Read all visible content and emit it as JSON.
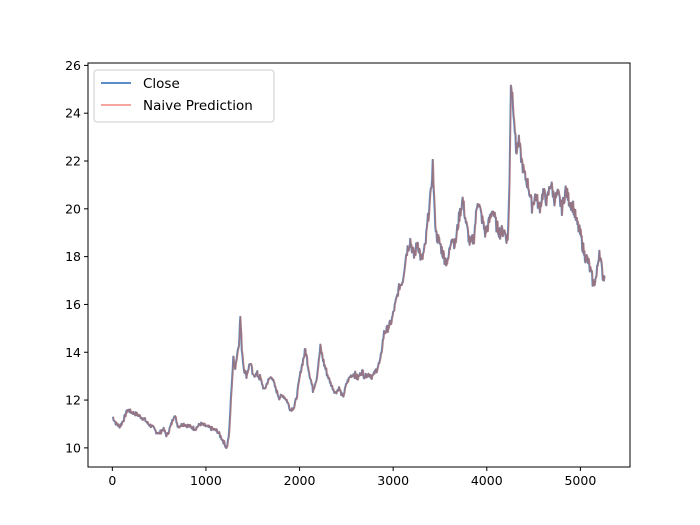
{
  "chart_data": {
    "type": "line",
    "title": "",
    "xlabel": "",
    "ylabel": "",
    "xlim": [
      -260,
      5530
    ],
    "ylim": [
      9.2,
      26.1
    ],
    "x_ticks": [
      0,
      1000,
      2000,
      3000,
      4000,
      5000
    ],
    "y_ticks": [
      10,
      12,
      14,
      16,
      18,
      20,
      22,
      24,
      26
    ],
    "grid": false,
    "legend": {
      "placement": "top-left"
    },
    "series": [
      {
        "name": "Close",
        "color": "#5b8ec6",
        "opacity": 1.0,
        "points": [
          [
            0,
            11.3
          ],
          [
            40,
            11.0
          ],
          [
            80,
            10.9
          ],
          [
            120,
            11.2
          ],
          [
            160,
            11.6
          ],
          [
            200,
            11.5
          ],
          [
            260,
            11.4
          ],
          [
            300,
            11.3
          ],
          [
            340,
            11.2
          ],
          [
            380,
            11.0
          ],
          [
            420,
            10.9
          ],
          [
            460,
            10.7
          ],
          [
            500,
            10.6
          ],
          [
            540,
            10.8
          ],
          [
            580,
            10.5
          ],
          [
            620,
            10.9
          ],
          [
            660,
            11.4
          ],
          [
            700,
            10.9
          ],
          [
            760,
            11.0
          ],
          [
            820,
            10.9
          ],
          [
            880,
            10.8
          ],
          [
            940,
            11.0
          ],
          [
            1000,
            10.9
          ],
          [
            1060,
            10.8
          ],
          [
            1120,
            10.7
          ],
          [
            1180,
            10.3
          ],
          [
            1220,
            10.0
          ],
          [
            1245,
            10.6
          ],
          [
            1270,
            12.5
          ],
          [
            1290,
            13.7
          ],
          [
            1310,
            13.4
          ],
          [
            1330,
            13.9
          ],
          [
            1350,
            14.4
          ],
          [
            1365,
            15.5
          ],
          [
            1380,
            14.2
          ],
          [
            1400,
            13.4
          ],
          [
            1430,
            13.0
          ],
          [
            1470,
            13.6
          ],
          [
            1500,
            13.0
          ],
          [
            1540,
            13.1
          ],
          [
            1580,
            12.9
          ],
          [
            1620,
            12.4
          ],
          [
            1660,
            12.8
          ],
          [
            1700,
            13.0
          ],
          [
            1740,
            12.5
          ],
          [
            1780,
            12.1
          ],
          [
            1820,
            12.2
          ],
          [
            1860,
            12.0
          ],
          [
            1900,
            11.6
          ],
          [
            1940,
            11.7
          ],
          [
            1970,
            12.2
          ],
          [
            2000,
            13.0
          ],
          [
            2030,
            13.6
          ],
          [
            2060,
            14.1
          ],
          [
            2100,
            13.2
          ],
          [
            2140,
            12.4
          ],
          [
            2180,
            12.9
          ],
          [
            2220,
            14.2
          ],
          [
            2260,
            13.5
          ],
          [
            2300,
            13.0
          ],
          [
            2340,
            12.6
          ],
          [
            2380,
            12.3
          ],
          [
            2420,
            12.5
          ],
          [
            2460,
            12.1
          ],
          [
            2500,
            12.7
          ],
          [
            2540,
            13.0
          ],
          [
            2580,
            13.1
          ],
          [
            2620,
            12.9
          ],
          [
            2660,
            13.2
          ],
          [
            2700,
            13.0
          ],
          [
            2740,
            13.1
          ],
          [
            2780,
            13.0
          ],
          [
            2820,
            13.3
          ],
          [
            2860,
            13.6
          ],
          [
            2880,
            14.3
          ],
          [
            2900,
            14.8
          ],
          [
            2940,
            15.0
          ],
          [
            2980,
            15.3
          ],
          [
            3020,
            16.0
          ],
          [
            3060,
            16.7
          ],
          [
            3100,
            17.0
          ],
          [
            3140,
            18.2
          ],
          [
            3180,
            18.7
          ],
          [
            3220,
            18.0
          ],
          [
            3260,
            18.6
          ],
          [
            3300,
            17.8
          ],
          [
            3340,
            18.4
          ],
          [
            3380,
            20.0
          ],
          [
            3400,
            20.6
          ],
          [
            3420,
            21.9
          ],
          [
            3440,
            19.8
          ],
          [
            3460,
            18.9
          ],
          [
            3500,
            18.5
          ],
          [
            3540,
            18.0
          ],
          [
            3580,
            17.7
          ],
          [
            3620,
            18.9
          ],
          [
            3660,
            18.5
          ],
          [
            3700,
            19.6
          ],
          [
            3740,
            20.4
          ],
          [
            3780,
            19.3
          ],
          [
            3820,
            18.5
          ],
          [
            3860,
            18.8
          ],
          [
            3900,
            20.4
          ],
          [
            3940,
            19.7
          ],
          [
            3980,
            19.0
          ],
          [
            4020,
            19.4
          ],
          [
            4060,
            20.0
          ],
          [
            4100,
            19.3
          ],
          [
            4140,
            19.0
          ],
          [
            4180,
            19.1
          ],
          [
            4220,
            18.7
          ],
          [
            4240,
            20.9
          ],
          [
            4255,
            25.3
          ],
          [
            4270,
            24.8
          ],
          [
            4290,
            23.8
          ],
          [
            4310,
            22.4
          ],
          [
            4340,
            22.8
          ],
          [
            4370,
            22.0
          ],
          [
            4400,
            21.4
          ],
          [
            4440,
            21.0
          ],
          [
            4480,
            20.1
          ],
          [
            4520,
            20.6
          ],
          [
            4560,
            20.0
          ],
          [
            4600,
            20.7
          ],
          [
            4640,
            20.3
          ],
          [
            4680,
            21.1
          ],
          [
            4720,
            20.4
          ],
          [
            4760,
            20.6
          ],
          [
            4800,
            20.0
          ],
          [
            4840,
            20.8
          ],
          [
            4880,
            20.3
          ],
          [
            4920,
            20.1
          ],
          [
            4960,
            19.4
          ],
          [
            5000,
            18.9
          ],
          [
            5040,
            18.1
          ],
          [
            5080,
            17.8
          ],
          [
            5110,
            17.3
          ],
          [
            5140,
            16.8
          ],
          [
            5170,
            17.2
          ],
          [
            5200,
            18.3
          ],
          [
            5230,
            17.3
          ],
          [
            5260,
            17.1
          ]
        ]
      },
      {
        "name": "Naive Prediction",
        "color": "#f4a6a0",
        "opacity": 0.6,
        "points": "same-as-close-shifted-by-one"
      }
    ]
  }
}
